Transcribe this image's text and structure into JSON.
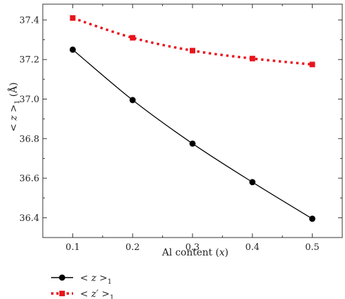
{
  "chart_data": {
    "type": "line",
    "x": [
      0.1,
      0.2,
      0.3,
      0.4,
      0.5
    ],
    "xlabel_text": "Al content (",
    "xlabel_var": "x",
    "xlabel_close": ")",
    "ylabel_prefix": "< ",
    "ylabel_var": "z",
    "ylabel_suffix": " >",
    "ylabel_sub": "1",
    "ylabel_unit": " (Å)",
    "xlim": [
      0.05,
      0.55
    ],
    "ylim": [
      36.3,
      37.48
    ],
    "xticks": [
      "0.1",
      "0.2",
      "0.3",
      "0.4",
      "0.5"
    ],
    "yticks": [
      "36.4",
      "36.6",
      "36.8",
      "37.0",
      "37.2",
      "37.4"
    ],
    "grid": false,
    "legend_position": "bottom-left",
    "series": [
      {
        "name_prefix": "< ",
        "name_var": "z",
        "name_suffix": " >",
        "name_sub": "1",
        "values": [
          37.25,
          36.995,
          36.775,
          36.58,
          36.395
        ],
        "color": "#000000",
        "line_style": "solid",
        "marker": "circle"
      },
      {
        "name_prefix": "< ",
        "name_var": "z′",
        "name_suffix": " >",
        "name_sub": "1",
        "values": [
          37.41,
          37.31,
          37.245,
          37.205,
          37.175
        ],
        "color": "#e8141c",
        "line_style": "dotted",
        "marker": "square"
      }
    ]
  }
}
